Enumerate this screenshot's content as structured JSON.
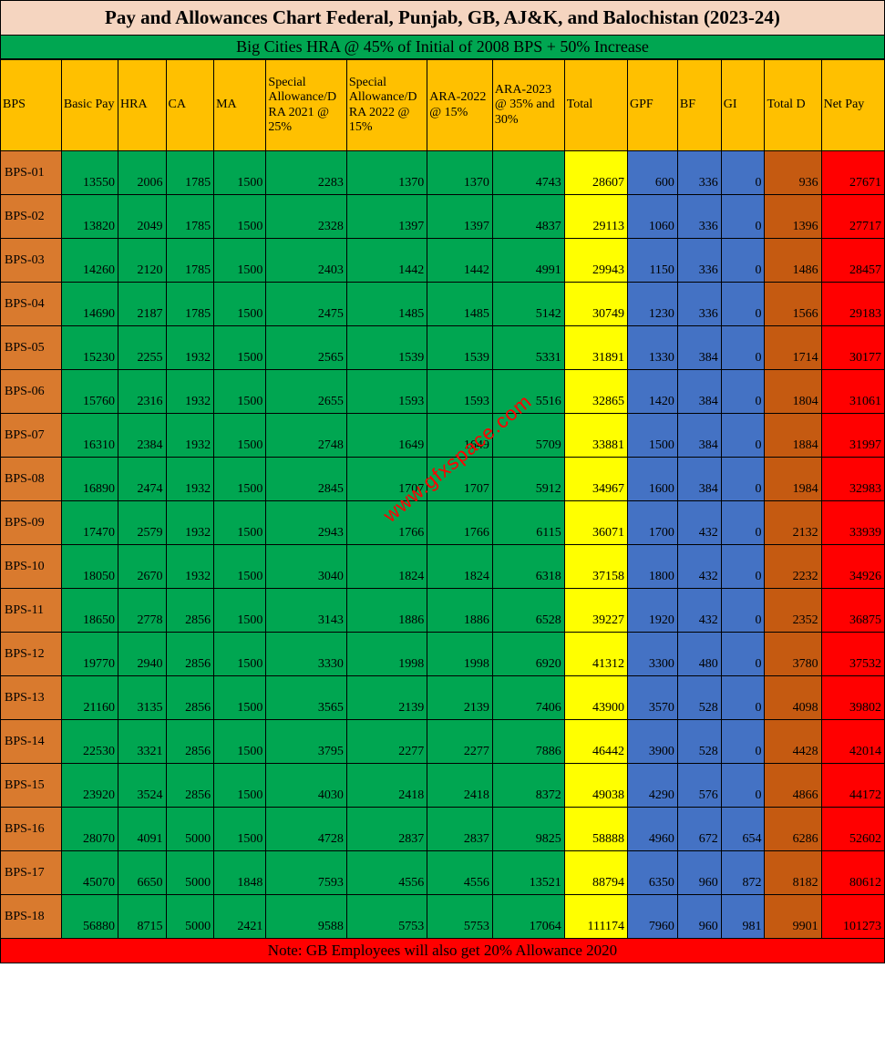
{
  "title": "Pay and Allowances Chart Federal, Punjab, GB, AJ&K, and Balochistan (2023-24)",
  "subtitle": "Big Cities HRA @ 45% of Initial of 2008 BPS + 50% Increase",
  "footer_note": "Note: GB Employees will also get 20% Allowance 2020",
  "watermark": "www.gfxspace.com",
  "headers": {
    "bps": "BPS",
    "basic": "Basic Pay",
    "hra": "HRA",
    "ca": "CA",
    "ma": "MA",
    "sa21": "Special Allowance/DRA 2021 @ 25%",
    "sa22": "Special Allowance/DRA 2022 @ 15%",
    "ara22": "ARA-2022 @ 15%",
    "ara23": "ARA-2023 @ 35% and 30%",
    "total": "Total",
    "gpf": "GPF",
    "bf": "BF",
    "gi": "GI",
    "td": "Total D",
    "net": "Net Pay"
  },
  "rows": [
    {
      "bps": "BPS-01",
      "basic": 13550,
      "hra": 2006,
      "ca": 1785,
      "ma": 1500,
      "sa21": 2283,
      "sa22": 1370,
      "ara22": 1370,
      "ara23": 4743,
      "total": 28607,
      "gpf": 600,
      "bf": 336,
      "gi": 0,
      "td": 936,
      "net": 27671
    },
    {
      "bps": "BPS-02",
      "basic": 13820,
      "hra": 2049,
      "ca": 1785,
      "ma": 1500,
      "sa21": 2328,
      "sa22": 1397,
      "ara22": 1397,
      "ara23": 4837,
      "total": 29113,
      "gpf": 1060,
      "bf": 336,
      "gi": 0,
      "td": 1396,
      "net": 27717
    },
    {
      "bps": "BPS-03",
      "basic": 14260,
      "hra": 2120,
      "ca": 1785,
      "ma": 1500,
      "sa21": 2403,
      "sa22": 1442,
      "ara22": 1442,
      "ara23": 4991,
      "total": 29943,
      "gpf": 1150,
      "bf": 336,
      "gi": 0,
      "td": 1486,
      "net": 28457
    },
    {
      "bps": "BPS-04",
      "basic": 14690,
      "hra": 2187,
      "ca": 1785,
      "ma": 1500,
      "sa21": 2475,
      "sa22": 1485,
      "ara22": 1485,
      "ara23": 5142,
      "total": 30749,
      "gpf": 1230,
      "bf": 336,
      "gi": 0,
      "td": 1566,
      "net": 29183
    },
    {
      "bps": "BPS-05",
      "basic": 15230,
      "hra": 2255,
      "ca": 1932,
      "ma": 1500,
      "sa21": 2565,
      "sa22": 1539,
      "ara22": 1539,
      "ara23": 5331,
      "total": 31891,
      "gpf": 1330,
      "bf": 384,
      "gi": 0,
      "td": 1714,
      "net": 30177
    },
    {
      "bps": "BPS-06",
      "basic": 15760,
      "hra": 2316,
      "ca": 1932,
      "ma": 1500,
      "sa21": 2655,
      "sa22": 1593,
      "ara22": 1593,
      "ara23": 5516,
      "total": 32865,
      "gpf": 1420,
      "bf": 384,
      "gi": 0,
      "td": 1804,
      "net": 31061
    },
    {
      "bps": "BPS-07",
      "basic": 16310,
      "hra": 2384,
      "ca": 1932,
      "ma": 1500,
      "sa21": 2748,
      "sa22": 1649,
      "ara22": 1649,
      "ara23": 5709,
      "total": 33881,
      "gpf": 1500,
      "bf": 384,
      "gi": 0,
      "td": 1884,
      "net": 31997
    },
    {
      "bps": "BPS-08",
      "basic": 16890,
      "hra": 2474,
      "ca": 1932,
      "ma": 1500,
      "sa21": 2845,
      "sa22": 1707,
      "ara22": 1707,
      "ara23": 5912,
      "total": 34967,
      "gpf": 1600,
      "bf": 384,
      "gi": 0,
      "td": 1984,
      "net": 32983
    },
    {
      "bps": "BPS-09",
      "basic": 17470,
      "hra": 2579,
      "ca": 1932,
      "ma": 1500,
      "sa21": 2943,
      "sa22": 1766,
      "ara22": 1766,
      "ara23": 6115,
      "total": 36071,
      "gpf": 1700,
      "bf": 432,
      "gi": 0,
      "td": 2132,
      "net": 33939
    },
    {
      "bps": "BPS-10",
      "basic": 18050,
      "hra": 2670,
      "ca": 1932,
      "ma": 1500,
      "sa21": 3040,
      "sa22": 1824,
      "ara22": 1824,
      "ara23": 6318,
      "total": 37158,
      "gpf": 1800,
      "bf": 432,
      "gi": 0,
      "td": 2232,
      "net": 34926
    },
    {
      "bps": "BPS-11",
      "basic": 18650,
      "hra": 2778,
      "ca": 2856,
      "ma": 1500,
      "sa21": 3143,
      "sa22": 1886,
      "ara22": 1886,
      "ara23": 6528,
      "total": 39227,
      "gpf": 1920,
      "bf": 432,
      "gi": 0,
      "td": 2352,
      "net": 36875
    },
    {
      "bps": "BPS-12",
      "basic": 19770,
      "hra": 2940,
      "ca": 2856,
      "ma": 1500,
      "sa21": 3330,
      "sa22": 1998,
      "ara22": 1998,
      "ara23": 6920,
      "total": 41312,
      "gpf": 3300,
      "bf": 480,
      "gi": 0,
      "td": 3780,
      "net": 37532
    },
    {
      "bps": "BPS-13",
      "basic": 21160,
      "hra": 3135,
      "ca": 2856,
      "ma": 1500,
      "sa21": 3565,
      "sa22": 2139,
      "ara22": 2139,
      "ara23": 7406,
      "total": 43900,
      "gpf": 3570,
      "bf": 528,
      "gi": 0,
      "td": 4098,
      "net": 39802
    },
    {
      "bps": "BPS-14",
      "basic": 22530,
      "hra": 3321,
      "ca": 2856,
      "ma": 1500,
      "sa21": 3795,
      "sa22": 2277,
      "ara22": 2277,
      "ara23": 7886,
      "total": 46442,
      "gpf": 3900,
      "bf": 528,
      "gi": 0,
      "td": 4428,
      "net": 42014
    },
    {
      "bps": "BPS-15",
      "basic": 23920,
      "hra": 3524,
      "ca": 2856,
      "ma": 1500,
      "sa21": 4030,
      "sa22": 2418,
      "ara22": 2418,
      "ara23": 8372,
      "total": 49038,
      "gpf": 4290,
      "bf": 576,
      "gi": 0,
      "td": 4866,
      "net": 44172
    },
    {
      "bps": "BPS-16",
      "basic": 28070,
      "hra": 4091,
      "ca": 5000,
      "ma": 1500,
      "sa21": 4728,
      "sa22": 2837,
      "ara22": 2837,
      "ara23": 9825,
      "total": 58888,
      "gpf": 4960,
      "bf": 672,
      "gi": 654,
      "td": 6286,
      "net": 52602
    },
    {
      "bps": "BPS-17",
      "basic": 45070,
      "hra": 6650,
      "ca": 5000,
      "ma": 1848,
      "sa21": 7593,
      "sa22": 4556,
      "ara22": 4556,
      "ara23": 13521,
      "total": 88794,
      "gpf": 6350,
      "bf": 960,
      "gi": 872,
      "td": 8182,
      "net": 80612
    },
    {
      "bps": "BPS-18",
      "basic": 56880,
      "hra": 8715,
      "ca": 5000,
      "ma": 2421,
      "sa21": 9588,
      "sa22": 5753,
      "ara22": 5753,
      "ara23": 17064,
      "total": 111174,
      "gpf": 7960,
      "bf": 960,
      "gi": 981,
      "td": 9901,
      "net": 101273
    }
  ],
  "colors": {
    "title_bg": "#f5d5c0",
    "subtitle_bg": "#00a651",
    "header_bg": "#ffc000",
    "bps_bg": "#d97a2e",
    "green": "#00a651",
    "yellow": "#ffff00",
    "blue": "#4472c4",
    "orange": "#c55a11",
    "red": "#ff0000"
  }
}
